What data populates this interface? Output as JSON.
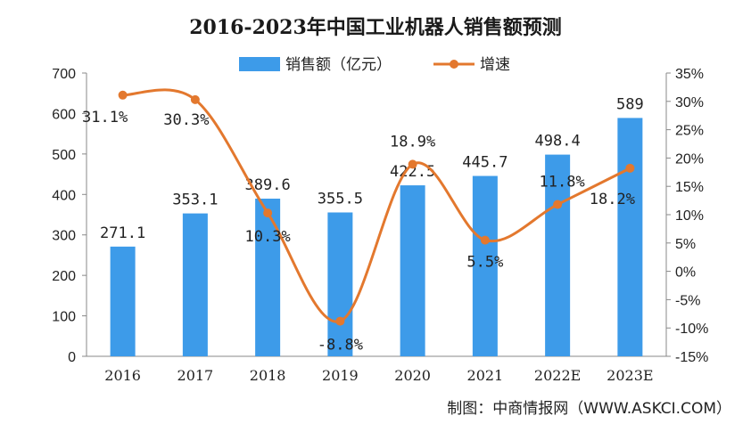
{
  "chart_data": {
    "type": "bar",
    "title": "2016-2023年中国工业机器人销售额预测",
    "categories": [
      "2016",
      "2017",
      "2018",
      "2019",
      "2020",
      "2021",
      "2022E",
      "2023E"
    ],
    "series": [
      {
        "name": "销售额（亿元）",
        "type": "bar",
        "axis": "left",
        "values": [
          271.1,
          353.1,
          389.6,
          355.5,
          422.5,
          445.7,
          498.4,
          589
        ],
        "labels": [
          "271.1",
          "353.1",
          "389.6",
          "355.5",
          "422.5",
          "445.7",
          "498.4",
          "589"
        ]
      },
      {
        "name": "增速",
        "type": "line",
        "axis": "right",
        "values": [
          31.1,
          30.3,
          10.3,
          -8.8,
          18.9,
          5.5,
          11.8,
          18.2
        ],
        "labels": [
          "31.1%",
          "30.3%",
          "10.3%",
          "-8.8%",
          "18.9%",
          "5.5%",
          "11.8%",
          "18.2%"
        ]
      }
    ],
    "y_left": {
      "range": [
        0,
        700
      ],
      "ticks": [
        "0",
        "100",
        "200",
        "300",
        "400",
        "500",
        "600",
        "700"
      ]
    },
    "y_right": {
      "range": [
        -15,
        35
      ],
      "ticks": [
        "-15%",
        "-10%",
        "-5%",
        "0%",
        "5%",
        "10%",
        "15%",
        "20%",
        "25%",
        "30%",
        "35%"
      ]
    },
    "legend_position": "top-center",
    "grid": false,
    "colors": {
      "bar": "#3d9be9",
      "line": "#e3782e"
    }
  },
  "source": "制图：中商情报网（WWW.ASKCI.COM）"
}
